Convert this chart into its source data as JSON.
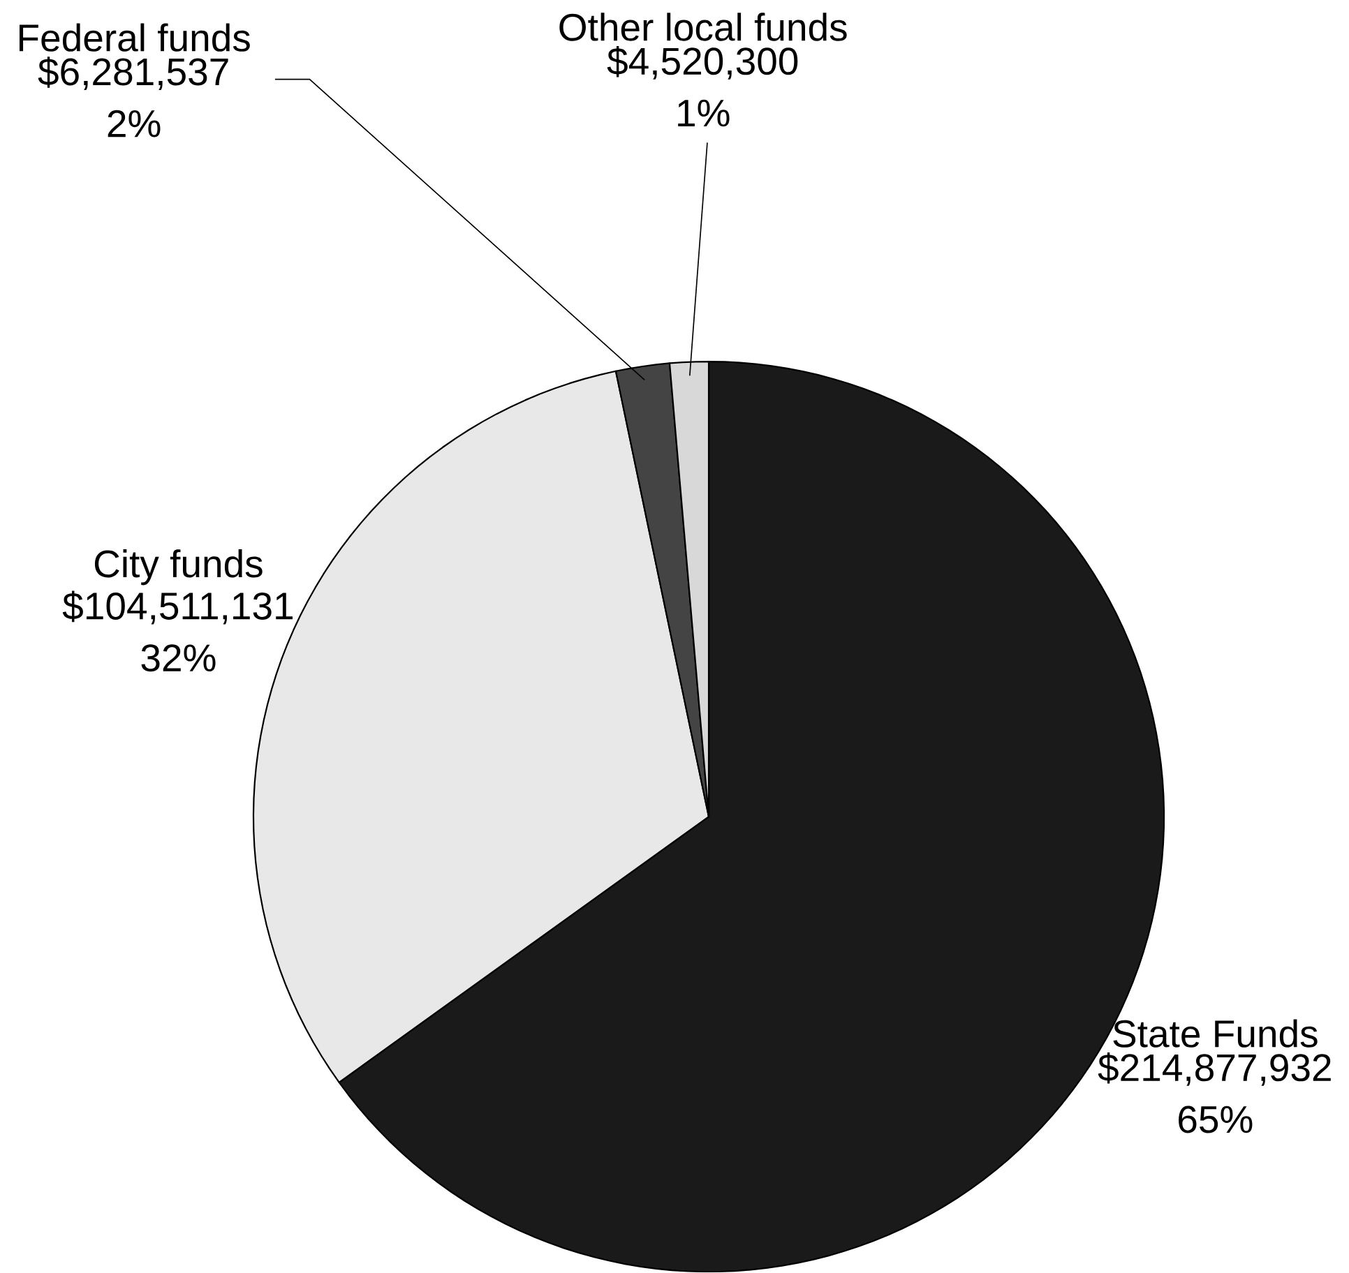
{
  "chart_data": {
    "type": "pie",
    "categories": [
      "State Funds",
      "City funds",
      "Federal funds",
      "Other local funds"
    ],
    "values": [
      214877932,
      104511131,
      6281537,
      4520300
    ],
    "value_labels": [
      "$214,877,932 65%",
      "$104,511,131 32%",
      "$6,281,537 2%",
      "$4,520,300 1%"
    ],
    "colors": [
      "#1a1a1a",
      "#e8e8e8",
      "#444444",
      "#d8d8d8"
    ]
  }
}
